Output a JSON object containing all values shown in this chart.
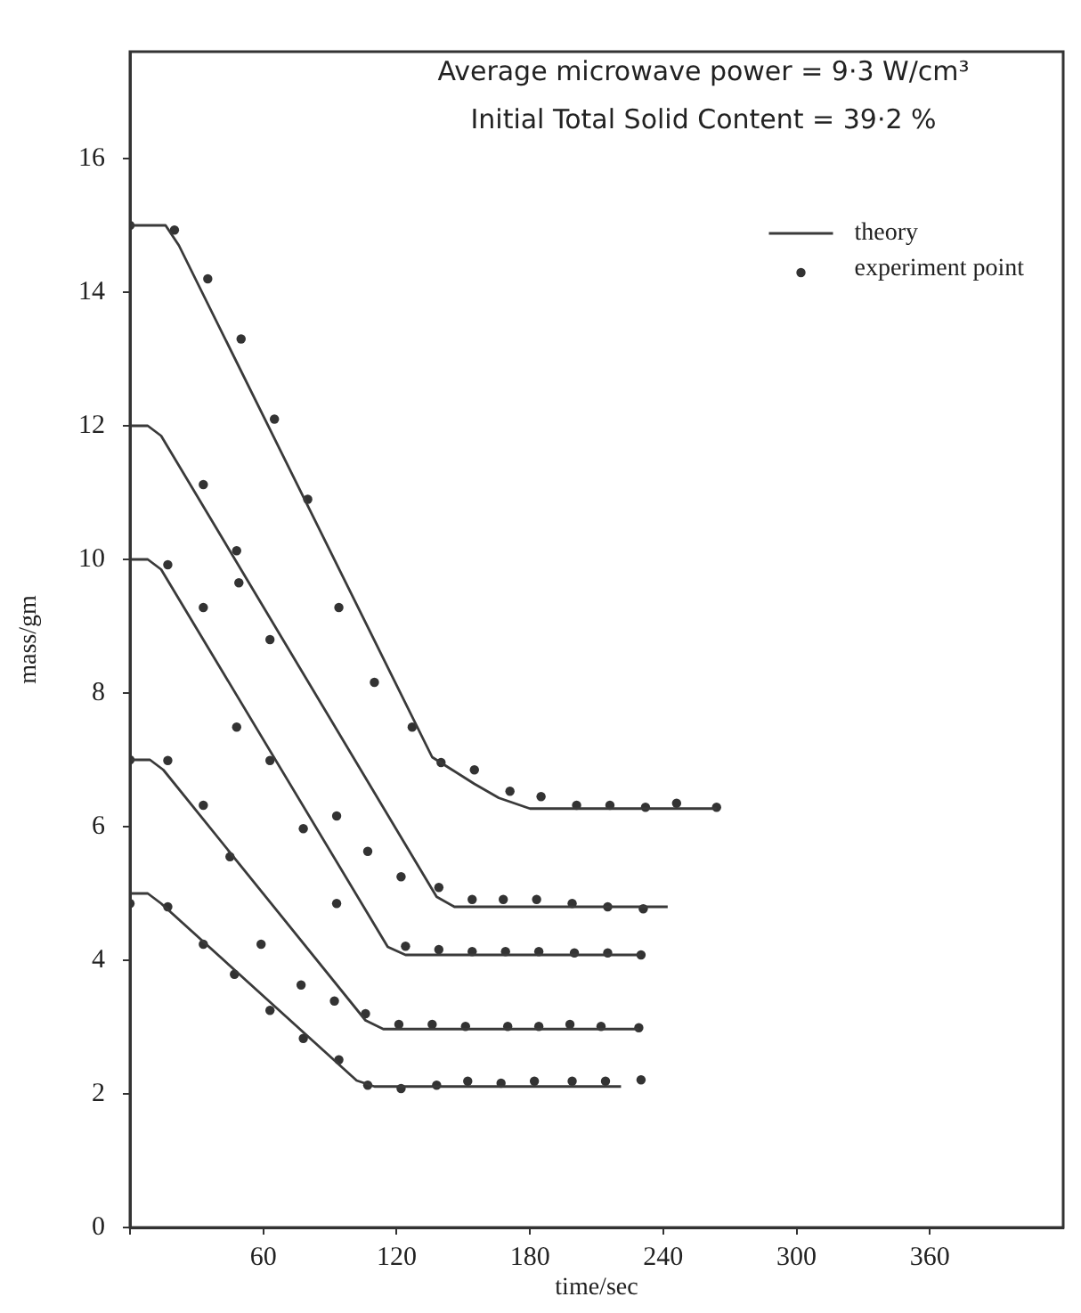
{
  "chart_data": {
    "type": "line",
    "xlabel": "time/sec",
    "ylabel": "mass/gm",
    "annotations": [
      "Average microwave power = 9·3 W/cm³",
      "Initial Total Solid Content = 39·2 %"
    ],
    "xlim": [
      0,
      420
    ],
    "xticks": [
      {
        "value": 0,
        "label": null
      },
      60,
      120,
      180,
      240,
      300,
      360
    ],
    "ylim": [
      0,
      17.6
    ],
    "yticks": [
      0,
      2,
      4,
      6,
      8,
      10,
      12,
      14,
      16
    ],
    "grid": false,
    "legend": "top right",
    "series": [
      {
        "name": "theory",
        "type": "line",
        "color": "#3a3a3a",
        "marker": "none",
        "line_style": "solid",
        "x": [
          0,
          16,
          22,
          136,
          145,
          155,
          166,
          180,
          264
        ],
        "values": [
          15,
          15,
          14.7,
          7.04,
          6.85,
          6.64,
          6.43,
          6.27,
          6.27
        ]
      },
      {
        "type": "line",
        "color": "#3a3a3a",
        "marker": "none",
        "line_style": "solid",
        "x": [
          0,
          8,
          14,
          138,
          146,
          242
        ],
        "values": [
          12,
          12,
          11.85,
          4.95,
          4.8,
          4.8
        ]
      },
      {
        "type": "line",
        "color": "#3a3a3a",
        "marker": "none",
        "line_style": "solid",
        "x": [
          0,
          8,
          14,
          116,
          124,
          230
        ],
        "values": [
          10,
          10,
          9.85,
          4.2,
          4.08,
          4.08
        ]
      },
      {
        "type": "line",
        "color": "#3a3a3a",
        "marker": "none",
        "line_style": "solid",
        "x": [
          0,
          9,
          15,
          106,
          114,
          229
        ],
        "values": [
          7,
          7,
          6.85,
          3.1,
          2.97,
          2.97
        ]
      },
      {
        "type": "line",
        "color": "#3a3a3a",
        "marker": "none",
        "line_style": "solid",
        "x": [
          0,
          8,
          14,
          102,
          110,
          221
        ],
        "values": [
          5,
          5,
          4.85,
          2.2,
          2.11,
          2.11
        ]
      },
      {
        "name": "experiment point",
        "type": "scatter",
        "color": "#333333",
        "marker": "circle",
        "x": [
          0,
          20,
          35,
          50,
          65,
          80,
          94,
          110,
          127,
          140,
          155,
          171,
          185,
          201,
          216,
          232,
          246,
          264
        ],
        "values": [
          15,
          14.93,
          14.2,
          13.3,
          12.1,
          10.9,
          9.28,
          8.16,
          7.49,
          6.96,
          6.85,
          6.53,
          6.45,
          6.32,
          6.32,
          6.29,
          6.35,
          6.29
        ]
      },
      {
        "type": "scatter",
        "color": "#333333",
        "marker": "circle",
        "x": [
          33,
          48,
          49,
          63,
          93,
          107,
          122,
          139,
          154,
          168,
          183,
          199,
          215,
          231
        ],
        "values": [
          11.12,
          10.13,
          9.65,
          8.8,
          6.16,
          5.63,
          5.25,
          5.09,
          4.91,
          4.91,
          4.91,
          4.85,
          4.8,
          4.77
        ]
      },
      {
        "type": "scatter",
        "color": "#333333",
        "marker": "circle",
        "x": [
          17,
          33,
          48,
          63,
          78,
          93,
          124,
          139,
          154,
          169,
          184,
          200,
          215,
          230
        ],
        "values": [
          9.92,
          9.28,
          7.49,
          6.99,
          5.97,
          4.85,
          4.21,
          4.16,
          4.13,
          4.13,
          4.13,
          4.11,
          4.11,
          4.08
        ]
      },
      {
        "type": "scatter",
        "color": "#333333",
        "marker": "circle",
        "x": [
          0,
          17,
          33,
          45,
          59,
          77,
          92,
          106,
          121,
          136,
          151,
          170,
          184,
          198,
          212,
          229
        ],
        "values": [
          7,
          6.99,
          6.32,
          5.55,
          4.24,
          3.63,
          3.39,
          3.2,
          3.04,
          3.04,
          3.01,
          3.01,
          3.01,
          3.04,
          3.01,
          2.99
        ]
      },
      {
        "type": "scatter",
        "color": "#333333",
        "marker": "circle",
        "x": [
          0,
          17,
          33,
          47,
          63,
          78,
          94,
          107,
          122,
          138,
          152,
          167,
          182,
          199,
          214,
          230
        ],
        "values": [
          4.85,
          4.8,
          4.24,
          3.79,
          3.25,
          2.83,
          2.51,
          2.13,
          2.08,
          2.13,
          2.19,
          2.16,
          2.19,
          2.19,
          2.19,
          2.21
        ]
      }
    ]
  }
}
